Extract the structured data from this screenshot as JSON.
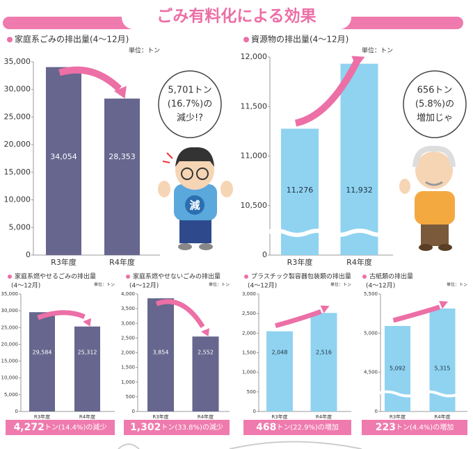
{
  "title": "ごみ有料化による効果",
  "decor": {
    "shirt": "減"
  },
  "chart_data": [
    {
      "type": "bar",
      "title": "家庭系ごみの排出量(4～12月)",
      "unit": "単位：トン",
      "categories": [
        "R3年度",
        "R4年度"
      ],
      "values": [
        34054,
        28353
      ],
      "value_labels": [
        "34,054",
        "28,353"
      ],
      "color": "#66668e",
      "ylim": [
        0,
        35000
      ],
      "yticks": [
        0,
        {
          "value": 5000,
          "label": "5,000"
        },
        {
          "value": 10000,
          "label": "10,000"
        },
        {
          "value": 15000,
          "label": "15,000"
        },
        {
          "value": 20000,
          "label": "20,000"
        },
        {
          "value": 25000,
          "label": "25,000"
        },
        {
          "value": 30000,
          "label": "30,000"
        },
        {
          "value": 35000,
          "label": "35,000"
        }
      ],
      "annotation": [
        "5,701トン",
        "(16.7%)の",
        "減少!?"
      ]
    },
    {
      "type": "bar",
      "title": "資源物の排出量(4～12月)",
      "unit": "単位：トン",
      "categories": [
        "R3年度",
        "R4年度"
      ],
      "values": [
        11276,
        11932
      ],
      "value_labels": [
        "11,276",
        "11,932"
      ],
      "color": "#8fd3f0",
      "ylim": [
        0,
        12000
      ],
      "axis_break": [
        0,
        10500
      ],
      "yticks": [
        0,
        {
          "value": 10500,
          "label": "10,500"
        },
        {
          "value": 11000,
          "label": "11,000"
        },
        {
          "value": 11500,
          "label": "11,500"
        },
        {
          "value": 12000,
          "label": "12,000"
        }
      ],
      "annotation": [
        "656トン",
        "(5.8%)の",
        "増加じゃ"
      ]
    },
    {
      "type": "bar",
      "title": "家庭系燃やせるごみの排出量",
      "subtitle": "(4～12月)",
      "unit": "単位：トン",
      "categories": [
        "R3年度",
        "R4年度"
      ],
      "values": [
        29584,
        25312
      ],
      "value_labels": [
        "29,584",
        "25,312"
      ],
      "color": "#66668e",
      "ylim": [
        0,
        35000
      ],
      "yticks": [
        0,
        {
          "value": 5000,
          "label": "5,000"
        },
        {
          "value": 10000,
          "label": "10,000"
        },
        {
          "value": 15000,
          "label": "15,000"
        },
        {
          "value": 20000,
          "label": "20,000"
        },
        {
          "value": 25000,
          "label": "25,000"
        },
        {
          "value": 30000,
          "label": "30,000"
        },
        {
          "value": 35000,
          "label": "35,000"
        }
      ],
      "summary_value": "4,272",
      "summary_text": "トン(14.4%)の減少"
    },
    {
      "type": "bar",
      "title": "家庭系燃やせないごみの排出量",
      "subtitle": "(4～12月)",
      "unit": "単位：トン",
      "categories": [
        "R3年度",
        "R4年度"
      ],
      "values": [
        3854,
        2552
      ],
      "value_labels": [
        "3,854",
        "2,552"
      ],
      "color": "#66668e",
      "ylim": [
        0,
        4000
      ],
      "yticks": [
        0,
        500,
        {
          "value": 1000,
          "label": "1,000"
        },
        {
          "value": 1500,
          "label": "1,500"
        },
        {
          "value": 2000,
          "label": "2,000"
        },
        {
          "value": 2500,
          "label": "2,500"
        },
        {
          "value": 3000,
          "label": "3,000"
        },
        {
          "value": 3500,
          "label": "3,500"
        },
        {
          "value": 4000,
          "label": "4,000"
        }
      ],
      "summary_value": "1,302",
      "summary_text": "トン(33.8%)の減少"
    },
    {
      "type": "bar",
      "title": "プラスチック製容器包装類の排出量",
      "subtitle": "(4～12月)",
      "unit": "単位：トン",
      "categories": [
        "R3年度",
        "R4年度"
      ],
      "values": [
        2048,
        2516
      ],
      "value_labels": [
        "2,048",
        "2,516"
      ],
      "color": "#8fd3f0",
      "ylim": [
        0,
        3000
      ],
      "yticks": [
        0,
        500,
        {
          "value": 1000,
          "label": "1,000"
        },
        {
          "value": 1500,
          "label": "1,500"
        },
        {
          "value": 2000,
          "label": "2,000"
        },
        {
          "value": 2500,
          "label": "2,500"
        },
        {
          "value": 3000,
          "label": "3,000"
        }
      ],
      "summary_value": "468",
      "summary_text": "トン(22.9%)の増加"
    },
    {
      "type": "bar",
      "title": "古紙類の排出量",
      "subtitle": "(4～12月)",
      "unit": "単位：トン",
      "categories": [
        "R3年度",
        "R4年度"
      ],
      "values": [
        5092,
        5315
      ],
      "value_labels": [
        "5,092",
        "5,315"
      ],
      "color": "#8fd3f0",
      "ylim": [
        0,
        5500
      ],
      "axis_break": [
        0,
        4500
      ],
      "yticks": [
        0,
        {
          "value": 4500,
          "label": "4,500"
        },
        {
          "value": 5000,
          "label": "5,000"
        },
        {
          "value": 5500,
          "label": "5,500"
        }
      ],
      "summary_value": "223",
      "summary_text": "トン(4.4%)の増加"
    }
  ]
}
